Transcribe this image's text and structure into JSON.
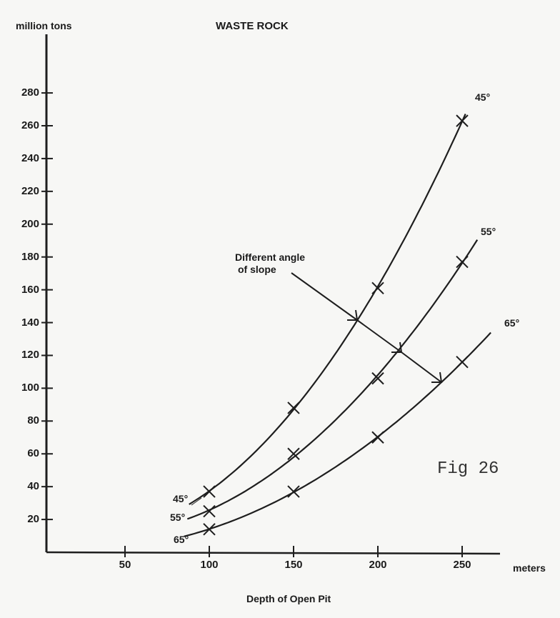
{
  "title": "WASTE ROCK",
  "y_unit_label": "million tons",
  "x_unit_label": "meters",
  "x_axis_title": "Depth of Open Pit",
  "annotation": "Different angle\nof slope",
  "annotation_lines": [
    "Different angle",
    "of slope"
  ],
  "figure_label": "Fig 26",
  "y_ticks": [
    "20",
    "40",
    "60",
    "80",
    "100",
    "120",
    "140",
    "160",
    "180",
    "200",
    "220",
    "240",
    "260",
    "280"
  ],
  "x_ticks": [
    "50",
    "100",
    "150",
    "200",
    "250"
  ],
  "series_labels": {
    "start": [
      "45°",
      "55°",
      "65°"
    ],
    "end": [
      "45°",
      "55°",
      "65°"
    ]
  },
  "chart_data": {
    "type": "line",
    "title": "WASTE ROCK",
    "xlabel": "Depth of Open Pit (meters)",
    "ylabel": "million tons",
    "x": [
      100,
      150,
      200,
      250
    ],
    "series": [
      {
        "name": "45°",
        "values": [
          37,
          88,
          161,
          263
        ]
      },
      {
        "name": "55°",
        "values": [
          25,
          60,
          106,
          177
        ]
      },
      {
        "name": "65°",
        "values": [
          14,
          37,
          70,
          116
        ]
      }
    ],
    "xlim": [
      0,
      275
    ],
    "ylim": [
      0,
      290
    ],
    "x_ticks": [
      50,
      100,
      150,
      200,
      250
    ],
    "y_ticks": [
      20,
      40,
      60,
      80,
      100,
      120,
      140,
      160,
      180,
      200,
      220,
      240,
      260,
      280
    ],
    "grid": false,
    "legend": "inline labels at curve ends",
    "annotations": [
      {
        "text": "Different angle of slope",
        "arrow_crosses": [
          "45°",
          "55°",
          "65°"
        ]
      },
      {
        "text": "Fig 26"
      }
    ]
  }
}
